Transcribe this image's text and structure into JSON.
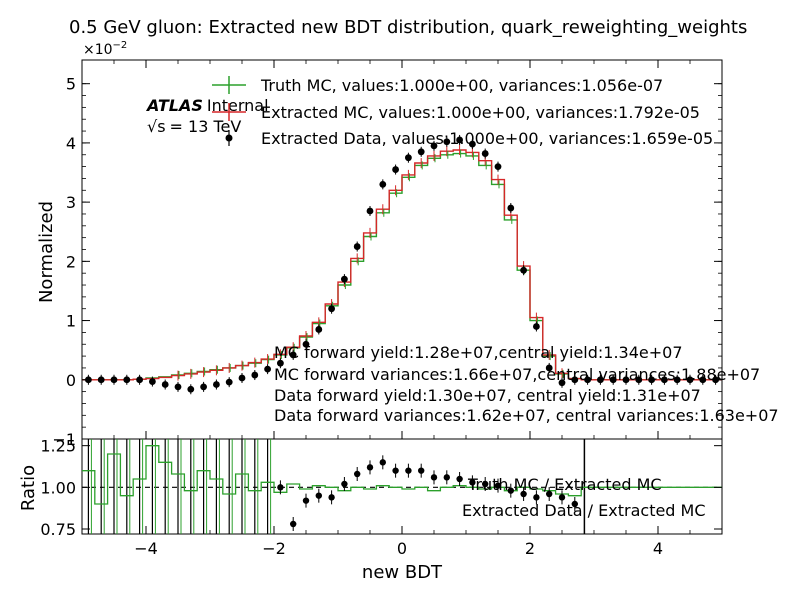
{
  "title": "0.5 GeV gluon: Extracted new BDT distribution, quark_reweighting_weights",
  "multiplier_base": "×10",
  "multiplier_exp": "−2",
  "atlas": {
    "brand": "ATLAS",
    "status": "Internal",
    "energy_sqrt": "√s",
    "energy_value": "= 13 TeV"
  },
  "legend": [
    {
      "label": "Truth MC, values:1.000e+00, variances:1.056e-07",
      "color": "#2ca02c",
      "style": "step-errorbar"
    },
    {
      "label": "Extracted MC, values:1.000e+00, variances:1.792e-05",
      "color": "#d62728",
      "style": "step-errorbar"
    },
    {
      "label": "Extracted Data, values:1.000e+00, variances:1.659e-05",
      "color": "#000000",
      "style": "marker"
    }
  ],
  "annotations": [
    "MC forward yield:1.28e+07,central yield:1.34e+07",
    "MC forward variances:1.66e+07,central variances:1.88e+07",
    "Data forward yield:1.30e+07, central yield:1.31e+07",
    "Data forward variances:1.62e+07, central variances:1.63e+07"
  ],
  "ratio_legend": [
    "Truth MC / Extracted MC",
    "Extracted Data / Extracted MC"
  ],
  "colors": {
    "truth": "#2ca02c",
    "extracted": "#d62728",
    "data": "#000000"
  },
  "chart_data": {
    "type": "line",
    "xlabel": "new BDT",
    "main": {
      "ylabel": "Normalized",
      "ylim": [
        -1,
        5.4
      ],
      "yticks": [
        "−1",
        "0",
        "1",
        "2",
        "3",
        "4",
        "5"
      ],
      "scale_note": "values in units of 1e-2",
      "x": [
        -4.9,
        -4.7,
        -4.5,
        -4.3,
        -4.1,
        -3.9,
        -3.7,
        -3.5,
        -3.3,
        -3.1,
        -2.9,
        -2.7,
        -2.5,
        -2.3,
        -2.1,
        -1.9,
        -1.7,
        -1.5,
        -1.3,
        -1.1,
        -0.9,
        -0.7,
        -0.5,
        -0.3,
        -0.1,
        0.1,
        0.3,
        0.5,
        0.7,
        0.9,
        1.1,
        1.3,
        1.5,
        1.7,
        1.9,
        2.1,
        2.3,
        2.5,
        2.7,
        2.9,
        3.1,
        3.3,
        3.5,
        3.7,
        3.9,
        4.1,
        4.3,
        4.5,
        4.7,
        4.9
      ],
      "series": [
        {
          "name": "Truth MC",
          "values": [
            0,
            0,
            0,
            0,
            0.01,
            0.03,
            0.05,
            0.08,
            0.11,
            0.14,
            0.17,
            0.2,
            0.24,
            0.28,
            0.34,
            0.42,
            0.54,
            0.72,
            0.95,
            1.25,
            1.6,
            2.0,
            2.42,
            2.82,
            3.15,
            3.42,
            3.62,
            3.74,
            3.8,
            3.82,
            3.78,
            3.62,
            3.3,
            2.7,
            1.85,
            1.0,
            0.4,
            0.1,
            0.02,
            0,
            0,
            0,
            0,
            0,
            0,
            0,
            0,
            0,
            0,
            0
          ]
        },
        {
          "name": "Extracted MC",
          "values": [
            0,
            0,
            0,
            0,
            0.01,
            0.02,
            0.04,
            0.07,
            0.1,
            0.13,
            0.16,
            0.2,
            0.24,
            0.29,
            0.35,
            0.43,
            0.55,
            0.74,
            0.97,
            1.28,
            1.65,
            2.05,
            2.48,
            2.88,
            3.2,
            3.46,
            3.66,
            3.78,
            3.86,
            3.88,
            3.84,
            3.7,
            3.38,
            2.78,
            1.92,
            1.05,
            0.42,
            0.11,
            0.02,
            0,
            0,
            0,
            0,
            0,
            0,
            0,
            0,
            0,
            0,
            0
          ]
        },
        {
          "name": "Extracted Data",
          "values": [
            0,
            0,
            0,
            0,
            0,
            -0.03,
            -0.08,
            -0.12,
            -0.16,
            -0.12,
            -0.08,
            -0.04,
            0.03,
            0.08,
            0.18,
            0.28,
            0.42,
            0.6,
            0.85,
            1.2,
            1.7,
            2.25,
            2.85,
            3.3,
            3.55,
            3.75,
            3.85,
            3.95,
            4.02,
            4.05,
            3.98,
            3.82,
            3.6,
            2.9,
            1.85,
            0.9,
            0.2,
            -0.05,
            0,
            0,
            0,
            0,
            0,
            0,
            0,
            0,
            0,
            0,
            0,
            0
          ]
        }
      ]
    },
    "ratio": {
      "ylabel": "Ratio",
      "ylim": [
        0.72,
        1.29
      ],
      "yticks": [
        "0.75",
        "1.00",
        "1.25"
      ],
      "xticks": [
        "−4",
        "−2",
        "0",
        "2",
        "4"
      ],
      "xlim": [
        -5,
        5
      ],
      "series": [
        {
          "name": "Truth MC / Extracted MC",
          "values": [
            1.1,
            0.9,
            1.2,
            0.95,
            1.05,
            1.25,
            1.15,
            1.08,
            0.98,
            1.1,
            1.05,
            0.96,
            1.08,
            0.98,
            1.03,
            0.97,
            1.02,
            0.99,
            1.01,
            1.0,
            0.98,
            1.0,
            0.99,
            1.01,
            1.0,
            0.99,
            1.0,
            0.98,
            1.0,
            1.01,
            1.0,
            0.99,
            1.0,
            0.98,
            1.0,
            0.99,
            0.98,
            0.96,
            0.95,
            1.0,
            1.0,
            1.0,
            1.0,
            1.0,
            1.0,
            1.0,
            1.0,
            1.0,
            1.0,
            1.0
          ]
        },
        {
          "name": "Extracted Data / Extracted MC",
          "values": [
            null,
            null,
            null,
            null,
            null,
            null,
            null,
            null,
            null,
            null,
            null,
            null,
            null,
            null,
            null,
            1.0,
            0.78,
            0.92,
            0.95,
            0.94,
            1.02,
            1.08,
            1.12,
            1.15,
            1.1,
            1.1,
            1.1,
            1.06,
            1.06,
            1.05,
            1.03,
            1.02,
            1.01,
            0.98,
            0.96,
            0.94,
            0.96,
            0.94,
            0.9,
            null,
            null,
            null,
            null,
            null,
            null,
            null,
            null,
            null,
            null,
            null
          ]
        }
      ]
    }
  }
}
